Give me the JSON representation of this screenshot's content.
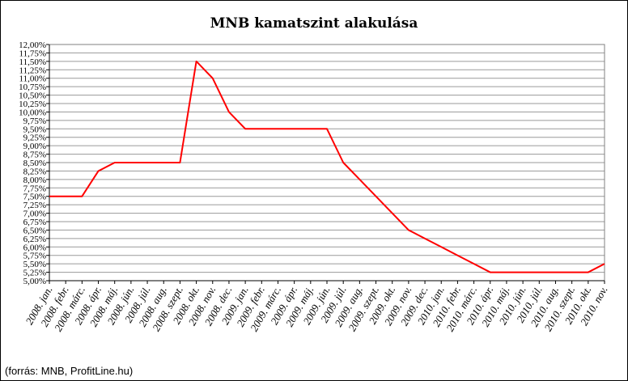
{
  "chart_data": {
    "type": "line",
    "title": "MNB kamatszint alakulása",
    "xlabel": "",
    "ylabel": "",
    "ylim": [
      5.0,
      12.0
    ],
    "grid": true,
    "legend": "none",
    "y_ticks": [
      "5,00%",
      "5,25%",
      "5,50%",
      "5,75%",
      "6,00%",
      "6,25%",
      "6,50%",
      "6,75%",
      "7,00%",
      "7,25%",
      "7,50%",
      "7,75%",
      "8,00%",
      "8,25%",
      "8,50%",
      "8,75%",
      "9,00%",
      "9,25%",
      "9,50%",
      "9,75%",
      "10,00%",
      "10,25%",
      "10,50%",
      "10,75%",
      "11,00%",
      "11,25%",
      "11,50%",
      "11,75%",
      "12,00%"
    ],
    "x_labels": [
      "2008. jan.",
      "2008. febr.",
      "2008. márc.",
      "2008. ápr.",
      "2008. máj.",
      "2008. jún.",
      "2008. júl.",
      "2008. aug.",
      "2008. szept.",
      "2008. okt.",
      "2008. nov.",
      "2008. dec.",
      "2009. jan.",
      "2009. febr.",
      "2009. márc.",
      "2009. ápr.",
      "2009. máj.",
      "2009. jún.",
      "2009. júl.",
      "2009. aug.",
      "2009. szept.",
      "2009. okt.",
      "2009. nov.",
      "2009. dec.",
      "2010. jan.",
      "2010. febr.",
      "2010. márc.",
      "2010. ápr.",
      "2010. máj.",
      "2010. jún.",
      "2010. júl.",
      "2010. aug.",
      "2010. szept.",
      "2010. okt.",
      "2010. nov."
    ],
    "series": [
      {
        "color": "#ff0000",
        "points": [
          [
            0,
            7.5
          ],
          [
            2,
            7.5
          ],
          [
            3,
            8.25
          ],
          [
            4,
            8.5
          ],
          [
            8,
            8.5
          ],
          [
            9,
            11.5
          ],
          [
            10,
            11.0
          ],
          [
            11,
            10.0
          ],
          [
            12,
            9.5
          ],
          [
            17,
            9.5
          ],
          [
            18,
            8.5
          ],
          [
            19,
            8.0
          ],
          [
            20,
            7.5
          ],
          [
            21,
            7.0
          ],
          [
            22,
            6.5
          ],
          [
            23,
            6.25
          ],
          [
            24,
            6.0
          ],
          [
            25,
            5.75
          ],
          [
            26,
            5.5
          ],
          [
            27,
            5.25
          ],
          [
            33,
            5.25
          ],
          [
            34,
            5.5
          ]
        ]
      }
    ]
  },
  "source_note": "(forrás: MNB, ProfitLine.hu)"
}
